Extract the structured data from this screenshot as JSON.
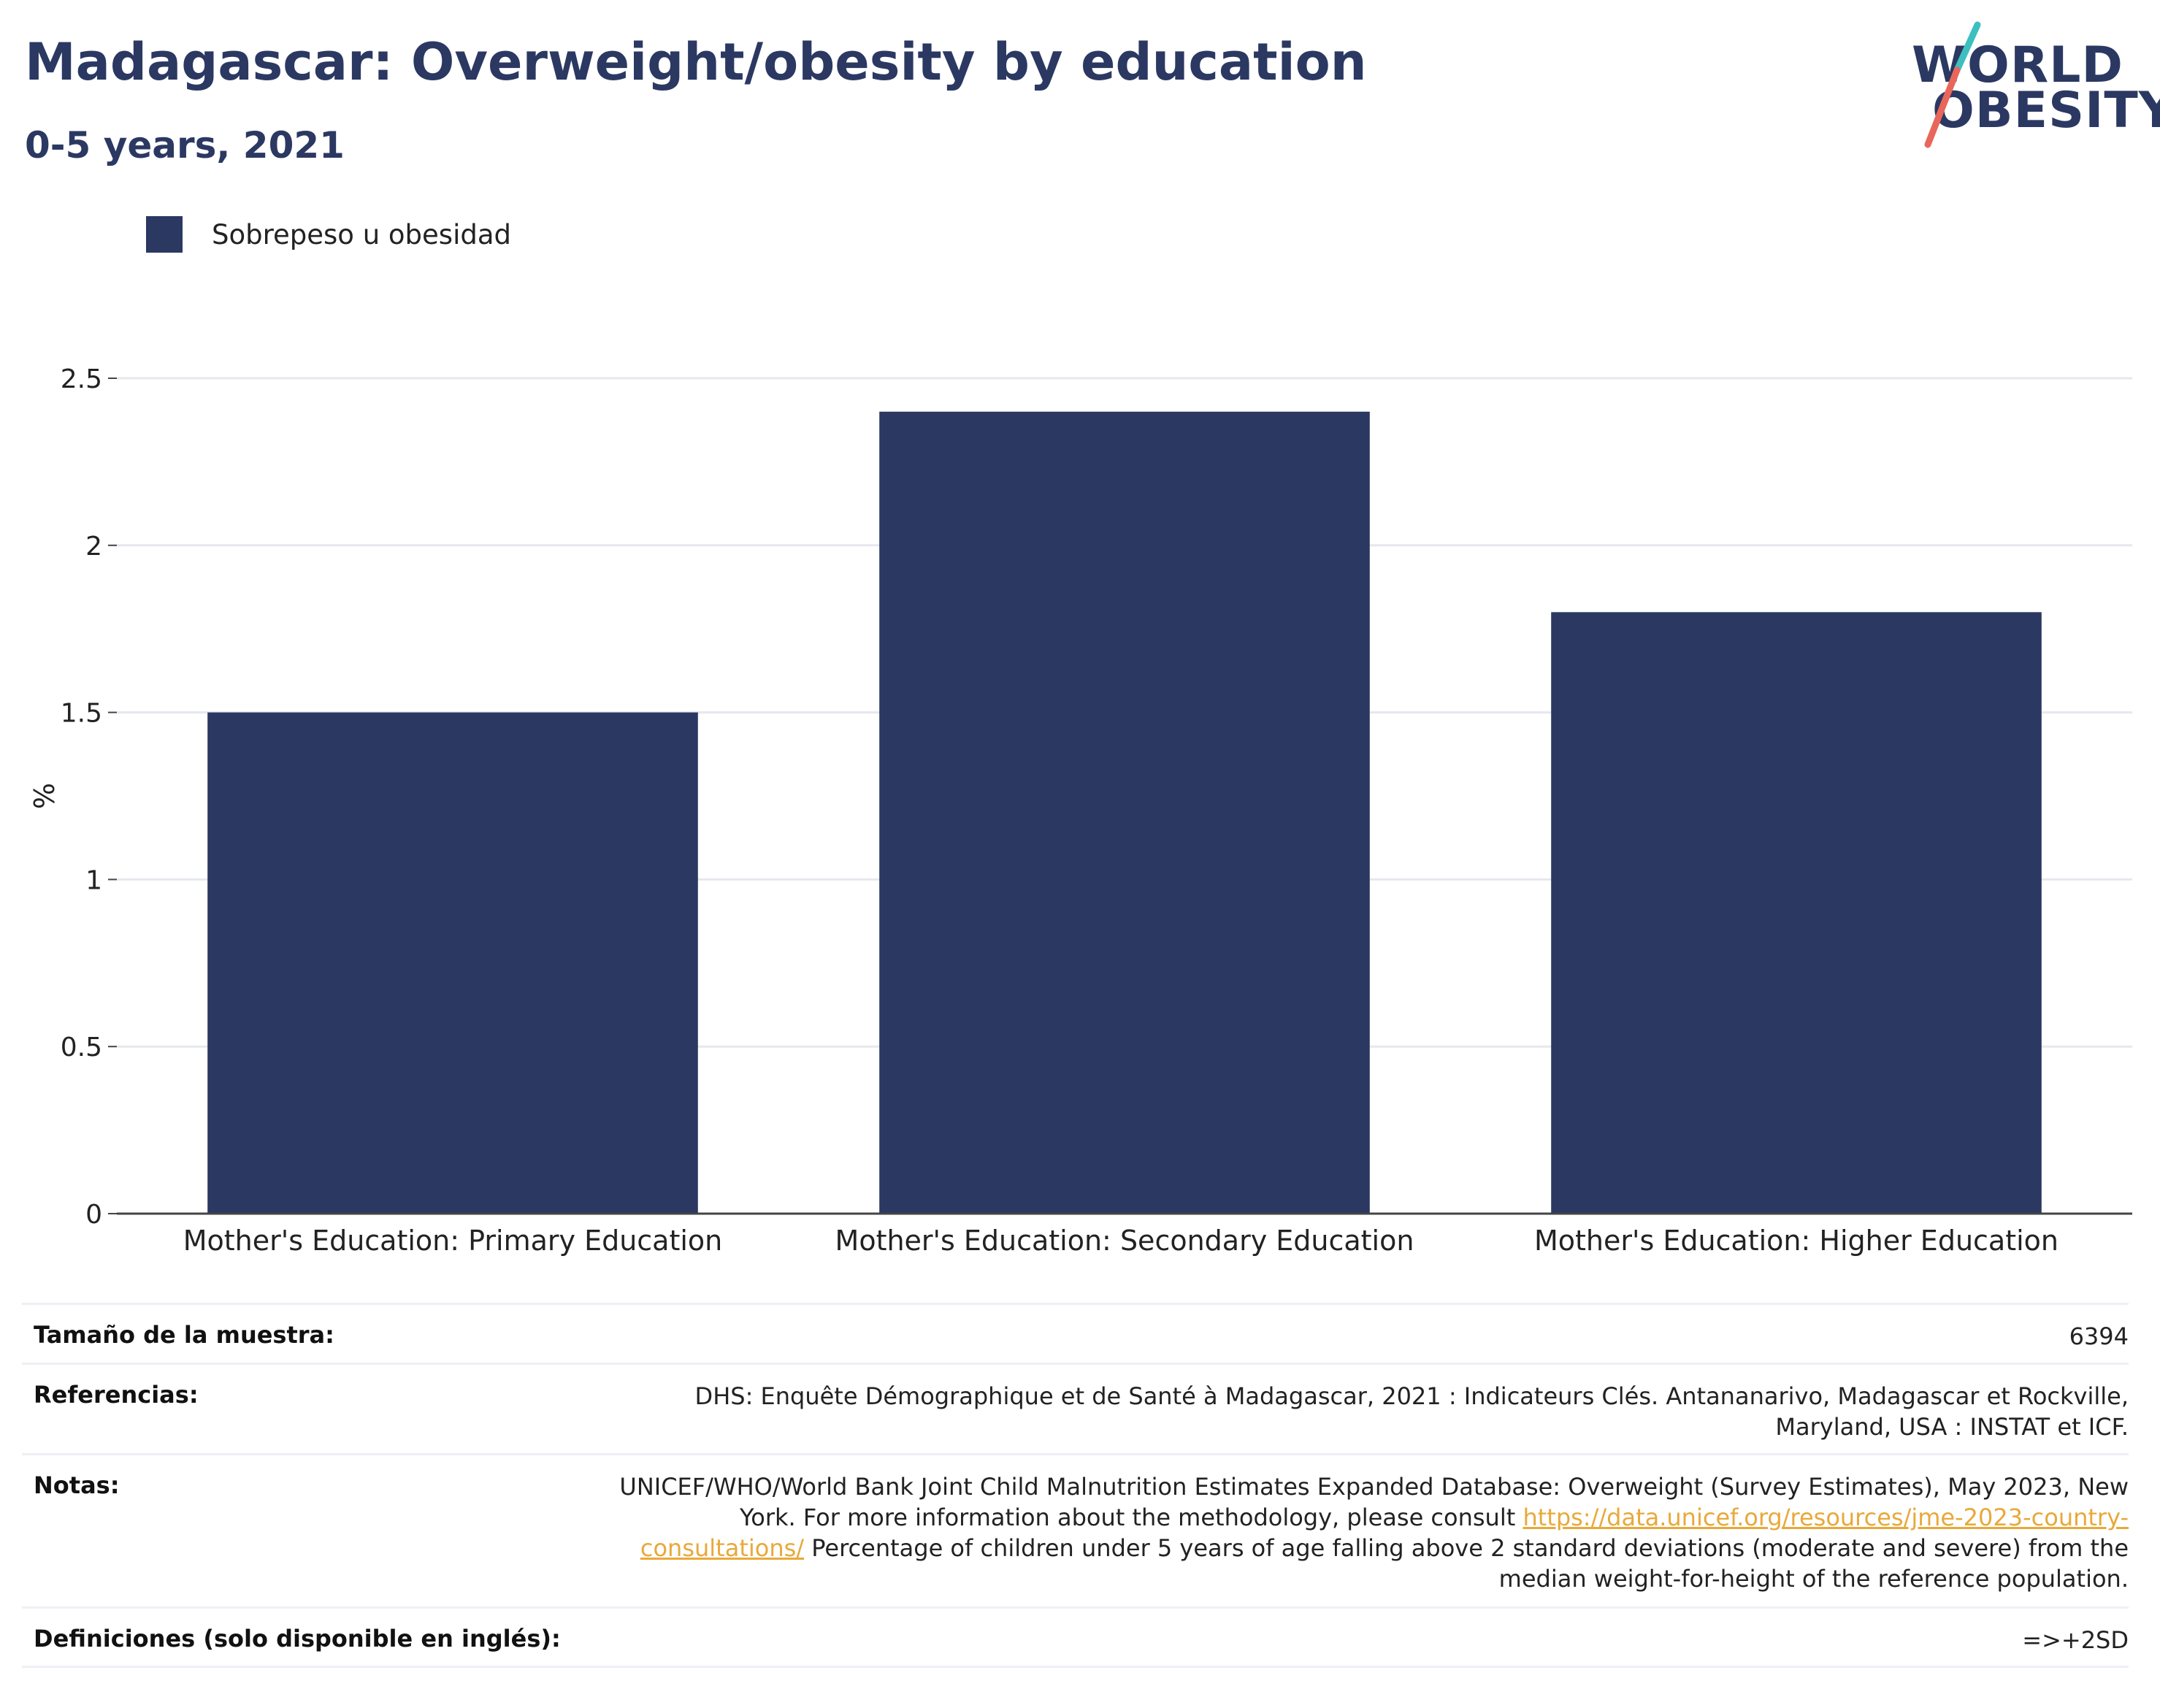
{
  "header": {
    "title": "Madagascar: Overweight/obesity by education",
    "subtitle": "0-5 years, 2021"
  },
  "logo": {
    "line1": "WORLD",
    "line2": "OBESITY",
    "accent_teal": "#3dbfbf",
    "accent_coral": "#e8675a",
    "text_color": "#2b3862"
  },
  "legend": {
    "label": "Sobrepeso u obesidad",
    "color": "#2b3862"
  },
  "chart_data": {
    "type": "bar",
    "categories": [
      "Mother's Education: Primary Education",
      "Mother's Education: Secondary Education",
      "Mother's Education: Higher Education"
    ],
    "series": [
      {
        "name": "Sobrepeso u obesidad",
        "values": [
          1.5,
          2.4,
          1.8
        ],
        "color": "#2b3862"
      }
    ],
    "ylabel": "%",
    "ylim": [
      0,
      2.5
    ],
    "yticks": [
      0,
      0.5,
      1,
      1.5,
      2,
      2.5
    ],
    "ytick_labels": [
      "0",
      "0.5",
      "1",
      "1.5",
      "2",
      "2.5"
    ],
    "grid": true,
    "legend_position": "top-left"
  },
  "info": {
    "sample_label": "Tamaño de la muestra:",
    "sample_value": "6394",
    "references_label": "Referencias:",
    "references_value": "DHS: Enquête Démographique et de Santé à Madagascar, 2021 : Indicateurs Clés. Antananarivo, Madagascar et Rockville, Maryland, USA : INSTAT et ICF.",
    "notes_label": "Notas:",
    "notes_before_link": "UNICEF/WHO/World Bank Joint Child Malnutrition Estimates Expanded Database: Overweight (Survey Estimates), May 2023, New York. For more information about the methodology, please consult ",
    "notes_link": "https://data.unicef.org/resources/jme-2023-country-consultations/",
    "notes_after_link": " Percentage of children under 5 years of age falling above 2 standard deviations (moderate and severe) from the median weight-for-height of the reference population.",
    "definitions_label": "Definiciones (solo disponible en inglés):",
    "definitions_value": "=>+2SD"
  }
}
